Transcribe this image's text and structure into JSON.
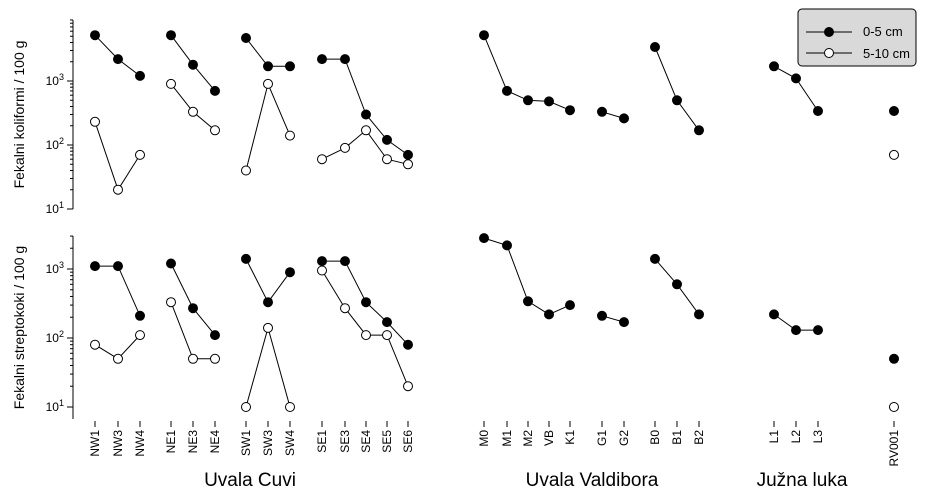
{
  "chart_data": {
    "type": "scatter",
    "y_scale": "log",
    "legend": {
      "placement": "top-right",
      "entries": [
        "0-5 cm",
        "5-10 cm"
      ]
    },
    "categories": [
      "NW1",
      "NW3",
      "NW4",
      "NE1",
      "NE3",
      "NE4",
      "SW1",
      "SW3",
      "SW4",
      "SE1",
      "SE3",
      "SE4",
      "SE5",
      "SE6",
      "M0",
      "M1",
      "M2",
      "VB",
      "K1",
      "G1",
      "G2",
      "B0",
      "B1",
      "B2",
      "L1",
      "L2",
      "L3",
      "RV001"
    ],
    "groups": [
      {
        "label": "Uvala Cuvi"
      },
      {
        "label": "Uvala Valdibora"
      },
      {
        "label": "Južna luka"
      }
    ],
    "line_segments": [
      [
        "NW1",
        "NW3",
        "NW4"
      ],
      [
        "NE1",
        "NE3",
        "NE4"
      ],
      [
        "SW1",
        "SW3",
        "SW4"
      ],
      [
        "SE1",
        "SE3",
        "SE4",
        "SE5",
        "SE6"
      ],
      [
        "M0",
        "M1",
        "M2",
        "VB",
        "K1"
      ],
      [
        "G1",
        "G2"
      ],
      [
        "B0",
        "B1",
        "B2"
      ],
      [
        "L1",
        "L2",
        "L3"
      ],
      [
        "RV001"
      ]
    ],
    "panels": [
      {
        "ylabel": "Fekalni koliformi / 100 g",
        "ylim": [
          10,
          10000
        ],
        "yticks": [
          {
            "base": "10",
            "exp": "1"
          },
          {
            "base": "10",
            "exp": "2"
          },
          {
            "base": "10",
            "exp": "3"
          }
        ],
        "series": [
          {
            "name": "0-5 cm",
            "marker": "filled",
            "values": [
              5200,
              2200,
              1200,
              5200,
              1800,
              700,
              4700,
              1700,
              1700,
              2200,
              2200,
              300,
              120,
              70,
              5200,
              700,
              500,
              480,
              350,
              330,
              260,
              3400,
              500,
              170,
              1700,
              1100,
              340,
              340
            ]
          },
          {
            "name": "5-10 cm",
            "marker": "open",
            "values": [
              230,
              20,
              70,
              900,
              330,
              170,
              40,
              900,
              140,
              60,
              90,
              170,
              60,
              50,
              null,
              null,
              null,
              null,
              null,
              null,
              null,
              null,
              null,
              null,
              null,
              null,
              null,
              70
            ]
          }
        ]
      },
      {
        "ylabel": "Fekalni streptokoki / 100 g",
        "ylim": [
          5,
          3500
        ],
        "yticks": [
          {
            "base": "10",
            "exp": "1"
          },
          {
            "base": "10",
            "exp": "2"
          },
          {
            "base": "10",
            "exp": "3"
          }
        ],
        "series": [
          {
            "name": "0-5 cm",
            "marker": "filled",
            "values": [
              1100,
              1100,
              210,
              1200,
              270,
              110,
              1400,
              330,
              900,
              1300,
              1300,
              330,
              170,
              80,
              2800,
              2200,
              340,
              220,
              300,
              210,
              170,
              1400,
              600,
              220,
              220,
              130,
              130,
              50
            ]
          },
          {
            "name": "5-10 cm",
            "marker": "open",
            "values": [
              80,
              50,
              110,
              330,
              50,
              50,
              10,
              140,
              10,
              950,
              270,
              110,
              110,
              20,
              null,
              null,
              null,
              null,
              null,
              null,
              null,
              null,
              null,
              null,
              null,
              null,
              null,
              10
            ]
          }
        ]
      }
    ]
  }
}
